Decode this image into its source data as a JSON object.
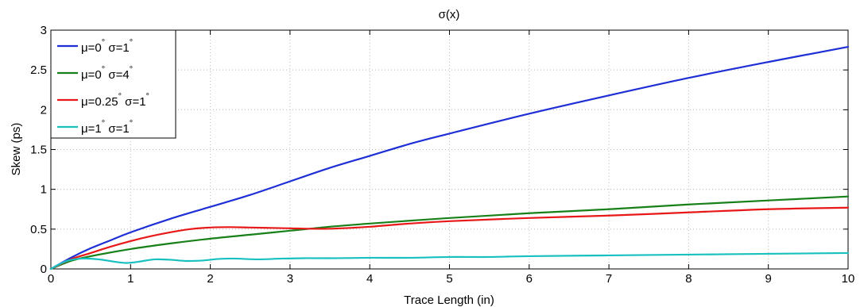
{
  "chart_data": {
    "type": "line",
    "title": "σ(x)",
    "xlabel": "Trace Length (in)",
    "ylabel": "Skew (ps)",
    "xlim": [
      0,
      10
    ],
    "ylim": [
      0,
      3
    ],
    "xticks": [
      0,
      1,
      2,
      3,
      4,
      5,
      6,
      7,
      8,
      9,
      10
    ],
    "yticks": [
      0,
      0.5,
      1,
      1.5,
      2,
      2.5,
      3
    ],
    "xtick_labels": [
      "0",
      "1",
      "2",
      "3",
      "4",
      "5",
      "6",
      "7",
      "8",
      "9",
      "10"
    ],
    "ytick_labels": [
      "0",
      "0.5",
      "1",
      "1.5",
      "2",
      "2.5",
      "3"
    ],
    "grid": true,
    "legend_position": "top-left",
    "series": [
      {
        "name": "μ=0° σ=1°",
        "legend_parts": [
          "μ=0",
          "°",
          " σ=1",
          "°"
        ],
        "color": "#1f2fd6",
        "x": [
          0,
          0.25,
          0.5,
          0.75,
          1,
          1.5,
          2,
          2.5,
          3,
          3.5,
          4,
          4.5,
          5,
          6,
          7,
          8,
          9,
          10
        ],
        "y": [
          0,
          0.14,
          0.26,
          0.36,
          0.46,
          0.63,
          0.78,
          0.93,
          1.1,
          1.27,
          1.42,
          1.57,
          1.7,
          1.95,
          2.18,
          2.4,
          2.6,
          2.79
        ]
      },
      {
        "name": "μ=0° σ=4°",
        "legend_parts": [
          "μ=0",
          "°",
          " σ=4",
          "°"
        ],
        "color": "#188018",
        "x": [
          0,
          0.25,
          0.5,
          1,
          1.5,
          2,
          2.5,
          3,
          3.5,
          4,
          5,
          6,
          7,
          8,
          9,
          10
        ],
        "y": [
          0,
          0.1,
          0.16,
          0.25,
          0.32,
          0.38,
          0.43,
          0.48,
          0.53,
          0.57,
          0.64,
          0.7,
          0.75,
          0.81,
          0.86,
          0.91
        ]
      },
      {
        "name": "μ=0.25° σ=1°",
        "legend_parts": [
          "μ=0.25",
          "°",
          " σ=1",
          "°"
        ],
        "color": "#e81818",
        "x": [
          0,
          0.25,
          0.5,
          0.75,
          1,
          1.25,
          1.5,
          1.75,
          2,
          2.25,
          2.5,
          2.75,
          3,
          3.25,
          3.5,
          3.75,
          4,
          4.5,
          5,
          6,
          7,
          8,
          9,
          10
        ],
        "y": [
          0,
          0.12,
          0.2,
          0.28,
          0.35,
          0.41,
          0.46,
          0.5,
          0.52,
          0.525,
          0.52,
          0.515,
          0.51,
          0.505,
          0.505,
          0.515,
          0.53,
          0.57,
          0.6,
          0.64,
          0.67,
          0.71,
          0.75,
          0.77
        ]
      },
      {
        "name": "μ=1° σ=1°",
        "legend_parts": [
          "μ=1",
          "°",
          " σ=1",
          "°"
        ],
        "color": "#18c0c0",
        "x": [
          0,
          0.2,
          0.4,
          0.6,
          0.8,
          0.95,
          1.1,
          1.3,
          1.5,
          1.7,
          1.9,
          2.1,
          2.3,
          2.6,
          2.9,
          3.2,
          3.6,
          4,
          4.5,
          5,
          5.5,
          6,
          7,
          8,
          9,
          10
        ],
        "y": [
          0,
          0.1,
          0.13,
          0.12,
          0.09,
          0.075,
          0.09,
          0.12,
          0.115,
          0.1,
          0.105,
          0.125,
          0.13,
          0.12,
          0.13,
          0.135,
          0.135,
          0.14,
          0.14,
          0.15,
          0.15,
          0.16,
          0.17,
          0.18,
          0.19,
          0.2
        ]
      }
    ]
  }
}
